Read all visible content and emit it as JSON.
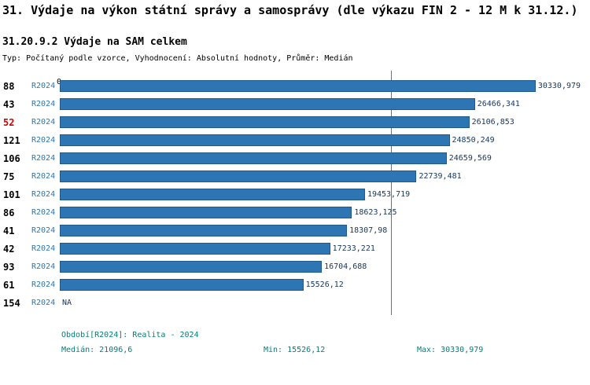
{
  "title": "31. Výdaje na výkon státní správy a samosprávy (dle výkazu FIN 2 - 12 M k 31.12.)",
  "subtitle": "31.20.9.2 Výdaje na SAM celkem",
  "meta": "Typ: Počítaný podle vzorce, Vyhodnocení: Absolutní hodnoty, Průměr: Medián",
  "chart_data": {
    "type": "bar",
    "orientation": "horizontal",
    "axis_zero_label": "0",
    "xlim": [
      0,
      33800
    ],
    "grid": false,
    "median": 21096.6,
    "rows": [
      {
        "id": "88",
        "period": "R2024",
        "value": 30330.979,
        "label": "30330,979",
        "highlight": false
      },
      {
        "id": "43",
        "period": "R2024",
        "value": 26466.341,
        "label": "26466,341",
        "highlight": false
      },
      {
        "id": "52",
        "period": "R2024",
        "value": 26106.853,
        "label": "26106,853",
        "highlight": true
      },
      {
        "id": "121",
        "period": "R2024",
        "value": 24850.249,
        "label": "24850,249",
        "highlight": false
      },
      {
        "id": "106",
        "period": "R2024",
        "value": 24659.569,
        "label": "24659,569",
        "highlight": false
      },
      {
        "id": "75",
        "period": "R2024",
        "value": 22739.481,
        "label": "22739,481",
        "highlight": false
      },
      {
        "id": "101",
        "period": "R2024",
        "value": 19453.719,
        "label": "19453,719",
        "highlight": false
      },
      {
        "id": "86",
        "period": "R2024",
        "value": 18623.125,
        "label": "18623,125",
        "highlight": false
      },
      {
        "id": "41",
        "period": "R2024",
        "value": 18307.98,
        "label": "18307,98",
        "highlight": false
      },
      {
        "id": "42",
        "period": "R2024",
        "value": 17233.221,
        "label": "17233,221",
        "highlight": false
      },
      {
        "id": "93",
        "period": "R2024",
        "value": 16704.688,
        "label": "16704,688",
        "highlight": false
      },
      {
        "id": "61",
        "period": "R2024",
        "value": 15526.12,
        "label": "15526,12",
        "highlight": false
      },
      {
        "id": "154",
        "period": "R2024",
        "value": null,
        "label": "NA",
        "highlight": false
      }
    ]
  },
  "footer": {
    "periods": "Období[R2024]: Realita - 2024",
    "median": "Medián: 21096,6",
    "min": "Min: 15526,12",
    "max": "Max: 30330,979"
  },
  "colors": {
    "bar": "#2e75b3",
    "bar_border": "#1f5a8a",
    "value_text": "#17365d",
    "period_text": "#2e75b3",
    "highlight_id": "#cc0000",
    "median_line": "#2e8ca0",
    "footer_text": "#008080"
  }
}
